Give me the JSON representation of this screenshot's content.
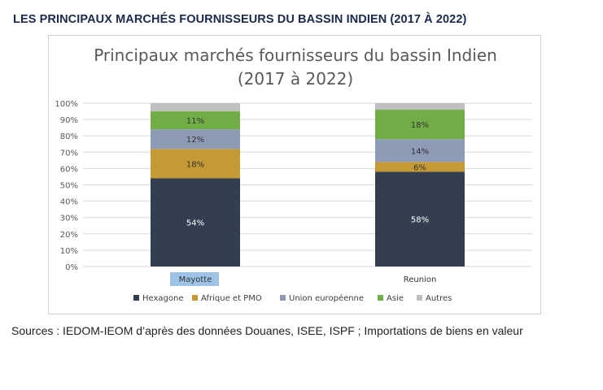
{
  "heading": "LES PRINCIPAUX MARCHÉS FOURNISSEURS DU BASSIN INDIEN (2017 À 2022)",
  "source": "Sources : IEDOM-IEOM d’après des données Douanes, ISEE, ISPF ; Importations de biens en valeur",
  "chart_data": {
    "type": "bar",
    "stacked": true,
    "title_lines": [
      "Principaux marchés fournisseurs du bassin Indien",
      "(2017 à 2022)"
    ],
    "categories": [
      "Mayotte",
      "Reunion"
    ],
    "selected_category": "Mayotte",
    "ylim": [
      0,
      100
    ],
    "ytick_labels": [
      "0%",
      "10%",
      "20%",
      "30%",
      "40%",
      "50%",
      "60%",
      "70%",
      "80%",
      "90%",
      "100%"
    ],
    "grid": true,
    "legend_position": "bottom",
    "series": [
      {
        "name": "Hexagone",
        "color": "#333f50",
        "values": [
          54,
          58
        ],
        "labels": [
          "54%",
          "58%"
        ],
        "label_color": "#ffffff"
      },
      {
        "name": "Afrique et PMO",
        "color": "#c59a35",
        "values": [
          18,
          6
        ],
        "labels": [
          "18%",
          "6%"
        ],
        "label_color": "#333333"
      },
      {
        "name": "Union européenne",
        "color": "#8d9bb5",
        "values": [
          12,
          14
        ],
        "labels": [
          "12%",
          "14%"
        ],
        "label_color": "#333333"
      },
      {
        "name": "Asie",
        "color": "#71ad47",
        "values": [
          11,
          18
        ],
        "labels": [
          "11%",
          "18%"
        ],
        "label_color": "#333333"
      },
      {
        "name": "Autres",
        "color": "#bfbfbf",
        "values": [
          5,
          4
        ],
        "labels": [
          "",
          ""
        ],
        "label_color": "#333333"
      }
    ]
  }
}
